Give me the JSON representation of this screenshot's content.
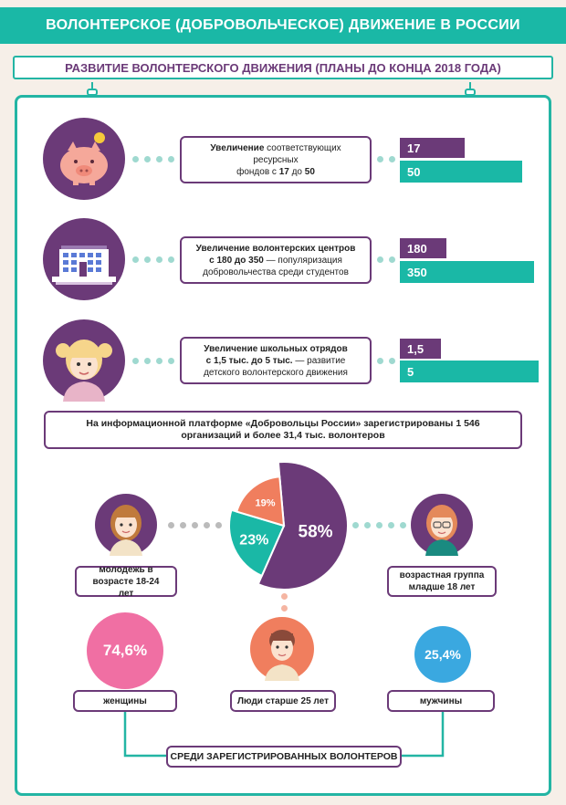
{
  "header": {
    "title": "ВОЛОНТЕРСКОЕ (ДОБРОВОЛЬЧЕСКОЕ) ДВИЖЕНИЕ В РОССИИ",
    "subtitle": "РАЗВИТИЕ ВОЛОНТЕРСКОГО ДВИЖЕНИЯ (ПЛАНЫ ДО КОНЦА 2018 ГОДА)"
  },
  "plans": [
    {
      "bold": "Увеличение",
      "text1": " соответствующих ресурсных",
      "text2a": "фондов с ",
      "from": "17",
      "mid": " до ",
      "to": "50",
      "text3": ""
    },
    {
      "bold": "Увеличение волонтерских центров",
      "text1": "",
      "text2a": "",
      "from": "с 180 до 350",
      "mid": " — популяризация",
      "to": "",
      "text3": "добровольчества среди студентов"
    },
    {
      "bold": "Увеличение школьных отрядов",
      "text1": "",
      "text2a": "",
      "from": "с 1,5 тыс. до 5 тыс.",
      "mid": " — развитие",
      "to": "",
      "text3": "детского волонтерского движения"
    }
  ],
  "platform_note": "На информационной платформе «Добровольцы России» зарегистрированы 1 546 организаций и более 31,4 тыс. волонтеров",
  "groups": {
    "youth": "молодежь в возрасте 18-24 лет",
    "under18": "возрастная группа младше 18 лет",
    "women": "женщины",
    "older": "Люди старше 25 лет",
    "men": "мужчины",
    "footer": "СРЕДИ ЗАРЕГИСТРИРОВАННЫХ ВОЛОНТЕРОВ"
  },
  "colors": {
    "purple": "#6b3a78",
    "teal": "#1ab8a6",
    "coral": "#f07e5e",
    "pink": "#f06fa3",
    "blue": "#3aa8e0"
  },
  "chart_data": [
    {
      "type": "bar",
      "categories": [
        "фонды",
        "волонтерские центры",
        "школьные отряды (тыс.)"
      ],
      "series": [
        {
          "values": [
            17,
            180,
            1.5
          ],
          "labels": [
            "17",
            "180",
            "1,5"
          ]
        },
        {
          "values": [
            50,
            350,
            5
          ],
          "labels": [
            "50",
            "350",
            "5"
          ]
        }
      ]
    },
    {
      "type": "pie",
      "categories": [
        "молодежь 18-24 лет",
        "младше 18 лет",
        "старше 25 лет"
      ],
      "values": [
        58,
        23,
        19
      ],
      "labels": [
        "58%",
        "23%",
        "19%"
      ]
    },
    {
      "type": "bar",
      "categories": [
        "женщины",
        "мужчины"
      ],
      "values": [
        74.6,
        25.4
      ],
      "labels": [
        "74,6%",
        "25,4%"
      ]
    }
  ]
}
